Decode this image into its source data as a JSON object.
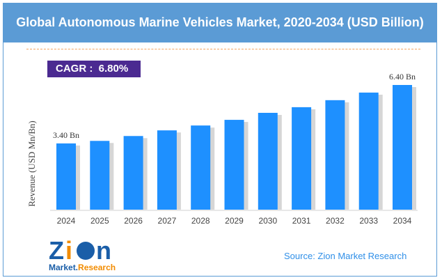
{
  "header": {
    "title": "Global Autonomous Marine Vehicles Market, 2020-2034 (USD Billion)"
  },
  "cagr": "CAGR :  6.80%",
  "source": "Source: Zion Market Research",
  "logo": {
    "text1": "Zion",
    "text2": "Market",
    "text3": "Research"
  },
  "colors": {
    "bar": "#1e90ff",
    "header": "#5b9bd5",
    "cagr": "#4b2a91"
  },
  "chart_data": {
    "type": "bar",
    "categories": [
      "2024",
      "2025",
      "2026",
      "2027",
      "2028",
      "2029",
      "2030",
      "2031",
      "2032",
      "2033",
      "2034"
    ],
    "values": [
      3.4,
      3.53,
      3.78,
      4.07,
      4.32,
      4.61,
      4.97,
      5.26,
      5.62,
      6.01,
      6.4
    ],
    "data_labels": {
      "0": "3.40 Bn",
      "10": "6.40 Bn"
    },
    "ylabel": "Revenue (USD Mn/Bn)",
    "ylim": [
      0,
      6.6
    ],
    "grid": false
  }
}
